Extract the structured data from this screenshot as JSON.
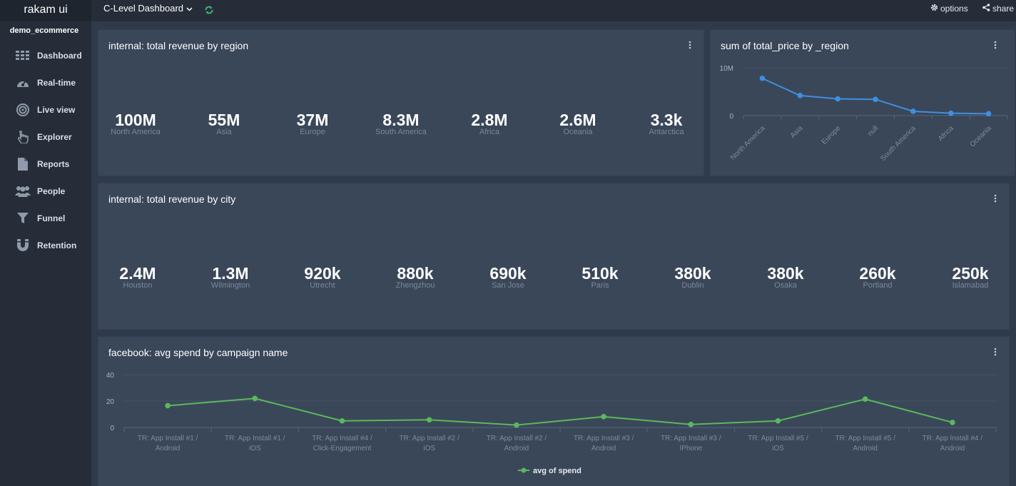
{
  "app": {
    "brand": "rakam ui",
    "project": "demo_ecommerce"
  },
  "sidebar": {
    "items": [
      {
        "label": "Dashboard",
        "icon": "grid-icon"
      },
      {
        "label": "Real-time",
        "icon": "gauge-icon"
      },
      {
        "label": "Live view",
        "icon": "target-icon"
      },
      {
        "label": "Explorer",
        "icon": "pointer-hand-icon"
      },
      {
        "label": "Reports",
        "icon": "file-icon"
      },
      {
        "label": "People",
        "icon": "users-icon"
      },
      {
        "label": "Funnel",
        "icon": "funnel-icon"
      },
      {
        "label": "Retention",
        "icon": "magnet-icon"
      }
    ]
  },
  "topbar": {
    "dashboard_name": "C-Level Dashboard",
    "options_label": "options",
    "share_label": "share",
    "colors": {
      "refresh": "#3cb371"
    }
  },
  "cards": {
    "region_revenue": {
      "title": "internal: total revenue by region",
      "kpis": [
        {
          "value": "100M",
          "label": "North America"
        },
        {
          "value": "55M",
          "label": "Asia"
        },
        {
          "value": "37M",
          "label": "Europe"
        },
        {
          "value": "8.3M",
          "label": "South America"
        },
        {
          "value": "2.8M",
          "label": "Africa"
        },
        {
          "value": "2.6M",
          "label": "Oceania"
        },
        {
          "value": "3.3k",
          "label": "Antarctica"
        }
      ]
    },
    "total_price_region": {
      "title": "sum of total_price by _region"
    },
    "city_revenue": {
      "title": "internal: total revenue by city",
      "kpis": [
        {
          "value": "2.4M",
          "label": "Houston"
        },
        {
          "value": "1.3M",
          "label": "Wilmington"
        },
        {
          "value": "920k",
          "label": "Utrecht"
        },
        {
          "value": "880k",
          "label": "Zhengzhou"
        },
        {
          "value": "690k",
          "label": "San Jose"
        },
        {
          "value": "510k",
          "label": "Paris"
        },
        {
          "value": "380k",
          "label": "Dublin"
        },
        {
          "value": "380k",
          "label": "Osaka"
        },
        {
          "value": "260k",
          "label": "Portland"
        },
        {
          "value": "250k",
          "label": "Islamabad"
        }
      ]
    },
    "facebook_spend": {
      "title": "facebook: avg spend by campaign name"
    }
  },
  "chart_data": [
    {
      "type": "line",
      "title": "sum of total_price by _region",
      "categories": [
        "North America",
        "Asia",
        "Europe",
        "null",
        "South America",
        "Africa",
        "Oceania"
      ],
      "values": [
        7800000,
        4200000,
        3500000,
        3400000,
        900000,
        500000,
        400000
      ],
      "ylim": [
        0,
        10000000
      ],
      "yticks": [
        0,
        10000000
      ],
      "ytick_labels": [
        "0",
        "10M"
      ],
      "color": "#3f8fe0",
      "legend": "none"
    },
    {
      "type": "line",
      "title": "facebook: avg spend by campaign name",
      "categories": [
        [
          "TR: App Install #1 /",
          "Android"
        ],
        [
          "TR: App Install #1 /",
          "iOS"
        ],
        [
          "TR: App Install #4 /",
          "Click-Engagement"
        ],
        [
          "TR: App Install #2 /",
          "iOS"
        ],
        [
          "TR: App Install #2 /",
          "Android"
        ],
        [
          "TR: App Install #3 /",
          "Android"
        ],
        [
          "TR: App Install #3 /",
          "IPhone"
        ],
        [
          "TR: App Install #5 /",
          "iOS"
        ],
        [
          "TR: App Install #5 /",
          "Android"
        ],
        [
          "TR: App Install #4 /",
          "Android"
        ]
      ],
      "series": [
        {
          "name": "avg of spend",
          "values": [
            16.5,
            22,
            5,
            5.8,
            1.8,
            8.2,
            2.3,
            5,
            21.5,
            3.8
          ]
        }
      ],
      "ylim": [
        0,
        40
      ],
      "yticks": [
        0,
        20,
        40
      ],
      "ytick_labels": [
        "0",
        "20",
        "40"
      ],
      "color": "#5cb85c",
      "legend": "bottom-center"
    }
  ]
}
